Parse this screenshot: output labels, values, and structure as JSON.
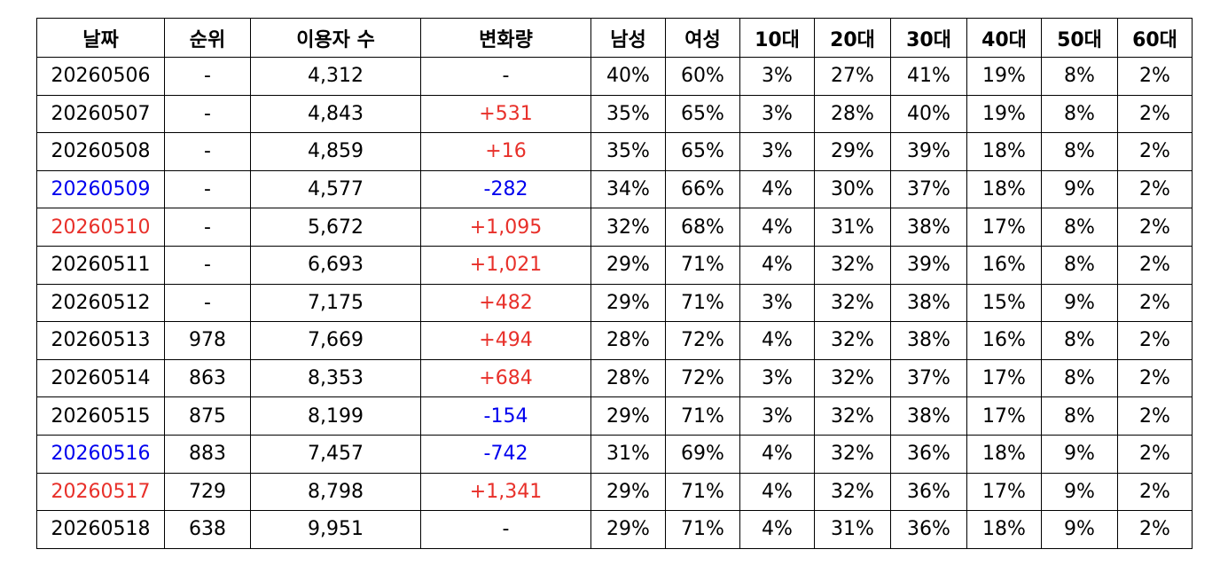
{
  "table": {
    "header": [
      "날짜",
      "순위",
      "이용자 수",
      "변화량",
      "남성",
      "여성",
      "10대",
      "20대",
      "30대",
      "40대",
      "50대",
      "60대"
    ],
    "rows": [
      [
        "20260506",
        "-",
        "4,312",
        "-",
        "40%",
        "60%",
        "3%",
        "27%",
        "41%",
        "19%",
        "8%",
        "2%"
      ],
      [
        "20260507",
        "-",
        "4,843",
        "+531",
        "35%",
        "65%",
        "3%",
        "28%",
        "40%",
        "19%",
        "8%",
        "2%"
      ],
      [
        "20260508",
        "-",
        "4,859",
        "+16",
        "35%",
        "65%",
        "3%",
        "29%",
        "39%",
        "18%",
        "8%",
        "2%"
      ],
      [
        "20260509",
        "-",
        "4,577",
        "-282",
        "34%",
        "66%",
        "4%",
        "30%",
        "37%",
        "18%",
        "9%",
        "2%"
      ],
      [
        "20260510",
        "-",
        "5,672",
        "+1,095",
        "32%",
        "68%",
        "4%",
        "31%",
        "38%",
        "17%",
        "8%",
        "2%"
      ],
      [
        "20260511",
        "-",
        "6,693",
        "+1,021",
        "29%",
        "71%",
        "4%",
        "32%",
        "39%",
        "16%",
        "8%",
        "2%"
      ],
      [
        "20260512",
        "-",
        "7,175",
        "+482",
        "29%",
        "71%",
        "3%",
        "32%",
        "38%",
        "15%",
        "9%",
        "2%"
      ],
      [
        "20260513",
        "978",
        "7,669",
        "+494",
        "28%",
        "72%",
        "4%",
        "32%",
        "38%",
        "16%",
        "8%",
        "2%"
      ],
      [
        "20260514",
        "863",
        "8,353",
        "+684",
        "28%",
        "72%",
        "3%",
        "32%",
        "37%",
        "17%",
        "8%",
        "2%"
      ],
      [
        "20260515",
        "875",
        "8,199",
        "-154",
        "29%",
        "71%",
        "3%",
        "32%",
        "38%",
        "17%",
        "8%",
        "2%"
      ],
      [
        "20260516",
        "883",
        "7,457",
        "-742",
        "31%",
        "69%",
        "4%",
        "32%",
        "36%",
        "18%",
        "9%",
        "2%"
      ],
      [
        "20260517",
        "729",
        "8,798",
        "+1,341",
        "29%",
        "71%",
        "4%",
        "32%",
        "36%",
        "17%",
        "9%",
        "2%"
      ],
      [
        "20260518",
        "638",
        "9,951",
        "-",
        "29%",
        "71%",
        "4%",
        "31%",
        "36%",
        "18%",
        "9%",
        "2%"
      ]
    ],
    "colors": {
      "saturday": "#0000ee",
      "sunday": "#e8302a",
      "increase": "#e8302a",
      "decrease": "#0000ee"
    }
  }
}
